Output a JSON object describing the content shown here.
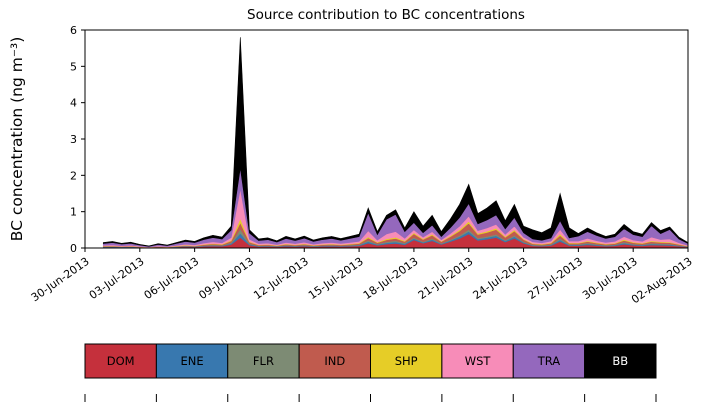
{
  "figure": {
    "background": "#ffffff"
  },
  "chart_data": {
    "type": "area",
    "stacked": true,
    "title": "Source contribution to BC concentrations",
    "xlabel": "",
    "ylabel": "BC concentration (ng m⁻³)",
    "ylim": [
      0,
      6
    ],
    "yticks": [
      0,
      1,
      2,
      3,
      4,
      5,
      6
    ],
    "xlim": [
      0,
      33
    ],
    "x_unit": "days since 30-Jun-2013",
    "grid": false,
    "legend_position": "bottom",
    "xtick_positions": [
      0,
      3,
      6,
      9,
      12,
      15,
      18,
      21,
      24,
      27,
      30,
      33
    ],
    "xtick_labels": [
      "30-Jun-2013",
      "03-Jul-2013",
      "06-Jul-2013",
      "09-Jul-2013",
      "12-Jul-2013",
      "15-Jul-2013",
      "18-Jul-2013",
      "21-Jul-2013",
      "24-Jul-2013",
      "27-Jul-2013",
      "30-Jul-2013",
      "02-Aug-2013"
    ],
    "x": [
      1,
      1.5,
      2,
      2.5,
      3,
      3.5,
      4,
      4.5,
      5,
      5.5,
      6,
      6.5,
      7,
      7.5,
      8,
      8.5,
      9,
      9.5,
      10,
      10.5,
      11,
      11.5,
      12,
      12.5,
      13,
      13.5,
      14,
      14.5,
      15,
      15.5,
      16,
      16.5,
      17,
      17.5,
      18,
      18.5,
      19,
      19.5,
      20,
      20.5,
      21,
      21.5,
      22,
      22.5,
      23,
      23.5,
      24,
      24.5,
      25,
      25.5,
      26,
      26.5,
      27,
      27.5,
      28,
      28.5,
      29,
      29.5,
      30,
      30.5,
      31,
      31.5,
      32,
      32.5,
      33
    ],
    "series": [
      {
        "name": "DOM",
        "color": "#c5303c",
        "values": [
          0.024,
          0.029,
          0.021,
          0.026,
          0.016,
          0.01,
          0.019,
          0.013,
          0.024,
          0.035,
          0.029,
          0.045,
          0.056,
          0.048,
          0.096,
          0.29,
          0.08,
          0.04,
          0.045,
          0.032,
          0.051,
          0.04,
          0.053,
          0.035,
          0.045,
          0.051,
          0.042,
          0.051,
          0.061,
          0.132,
          0.072,
          0.108,
          0.126,
          0.088,
          0.22,
          0.132,
          0.198,
          0.099,
          0.176,
          0.264,
          0.385,
          0.209,
          0.242,
          0.286,
          0.165,
          0.264,
          0.132,
          0.06,
          0.05,
          0.066,
          0.18,
          0.066,
          0.064,
          0.088,
          0.067,
          0.051,
          0.061,
          0.104,
          0.072,
          0.061,
          0.084,
          0.077,
          0.07,
          0.048,
          0.024
        ]
      },
      {
        "name": "ENE",
        "color": "#3878af",
        "values": [
          0.008,
          0.009,
          0.007,
          0.008,
          0.005,
          0.003,
          0.006,
          0.004,
          0.008,
          0.011,
          0.009,
          0.014,
          0.018,
          0.015,
          0.03,
          0.116,
          0.025,
          0.013,
          0.014,
          0.01,
          0.016,
          0.013,
          0.017,
          0.011,
          0.014,
          0.016,
          0.013,
          0.016,
          0.019,
          0.044,
          0.023,
          0.036,
          0.042,
          0.028,
          0.04,
          0.024,
          0.036,
          0.018,
          0.032,
          0.048,
          0.07,
          0.038,
          0.044,
          0.052,
          0.03,
          0.048,
          0.024,
          0.015,
          0.013,
          0.017,
          0.045,
          0.017,
          0.02,
          0.028,
          0.021,
          0.016,
          0.019,
          0.033,
          0.023,
          0.019,
          0.028,
          0.024,
          0.023,
          0.015,
          0.008
        ]
      },
      {
        "name": "FLR",
        "color": "#7d8b74",
        "values": [
          0.006,
          0.007,
          0.005,
          0.006,
          0.004,
          0.002,
          0.005,
          0.003,
          0.006,
          0.009,
          0.007,
          0.011,
          0.014,
          0.012,
          0.024,
          0.116,
          0.02,
          0.01,
          0.011,
          0.008,
          0.013,
          0.01,
          0.013,
          0.009,
          0.011,
          0.013,
          0.01,
          0.013,
          0.015,
          0.033,
          0.018,
          0.027,
          0.032,
          0.022,
          0.03,
          0.018,
          0.027,
          0.014,
          0.024,
          0.036,
          0.053,
          0.029,
          0.033,
          0.039,
          0.023,
          0.036,
          0.018,
          0.015,
          0.013,
          0.017,
          0.045,
          0.017,
          0.016,
          0.022,
          0.017,
          0.013,
          0.015,
          0.026,
          0.018,
          0.015,
          0.021,
          0.019,
          0.017,
          0.012,
          0.006
        ]
      },
      {
        "name": "IND",
        "color": "#c05b4e",
        "values": [
          0.011,
          0.013,
          0.009,
          0.011,
          0.007,
          0.004,
          0.008,
          0.006,
          0.011,
          0.015,
          0.013,
          0.02,
          0.025,
          0.021,
          0.042,
          0.174,
          0.035,
          0.018,
          0.02,
          0.014,
          0.022,
          0.018,
          0.023,
          0.015,
          0.02,
          0.022,
          0.018,
          0.022,
          0.027,
          0.066,
          0.032,
          0.054,
          0.063,
          0.039,
          0.1,
          0.06,
          0.09,
          0.045,
          0.08,
          0.12,
          0.175,
          0.095,
          0.11,
          0.13,
          0.075,
          0.12,
          0.06,
          0.025,
          0.021,
          0.028,
          0.075,
          0.028,
          0.028,
          0.039,
          0.029,
          0.022,
          0.027,
          0.046,
          0.032,
          0.027,
          0.042,
          0.034,
          0.035,
          0.021,
          0.011
        ]
      },
      {
        "name": "SHP",
        "color": "#e6cd27",
        "values": [
          0.006,
          0.007,
          0.005,
          0.006,
          0.004,
          0.002,
          0.005,
          0.003,
          0.006,
          0.009,
          0.007,
          0.011,
          0.014,
          0.012,
          0.024,
          0.116,
          0.02,
          0.01,
          0.011,
          0.008,
          0.013,
          0.01,
          0.013,
          0.009,
          0.011,
          0.013,
          0.01,
          0.013,
          0.015,
          0.033,
          0.018,
          0.027,
          0.032,
          0.022,
          0.03,
          0.018,
          0.027,
          0.014,
          0.024,
          0.036,
          0.053,
          0.029,
          0.033,
          0.039,
          0.023,
          0.036,
          0.018,
          0.015,
          0.013,
          0.017,
          0.045,
          0.017,
          0.016,
          0.022,
          0.017,
          0.013,
          0.015,
          0.026,
          0.018,
          0.015,
          0.021,
          0.019,
          0.017,
          0.012,
          0.006
        ]
      },
      {
        "name": "WST",
        "color": "#f78cb8",
        "values": [
          0.018,
          0.022,
          0.016,
          0.019,
          0.012,
          0.007,
          0.014,
          0.01,
          0.018,
          0.026,
          0.022,
          0.034,
          0.042,
          0.036,
          0.072,
          0.812,
          0.06,
          0.03,
          0.034,
          0.024,
          0.038,
          0.03,
          0.04,
          0.026,
          0.034,
          0.038,
          0.031,
          0.038,
          0.046,
          0.165,
          0.054,
          0.135,
          0.158,
          0.066,
          0.08,
          0.048,
          0.072,
          0.036,
          0.064,
          0.096,
          0.14,
          0.076,
          0.088,
          0.104,
          0.06,
          0.096,
          0.048,
          0.04,
          0.034,
          0.044,
          0.12,
          0.044,
          0.048,
          0.066,
          0.05,
          0.038,
          0.046,
          0.078,
          0.054,
          0.046,
          0.105,
          0.058,
          0.087,
          0.036,
          0.018
        ]
      },
      {
        "name": "TRA",
        "color": "#9468bd",
        "values": [
          0.051,
          0.061,
          0.044,
          0.054,
          0.034,
          0.02,
          0.041,
          0.027,
          0.051,
          0.075,
          0.061,
          0.095,
          0.119,
          0.102,
          0.204,
          0.58,
          0.17,
          0.085,
          0.095,
          0.068,
          0.109,
          0.085,
          0.112,
          0.075,
          0.095,
          0.109,
          0.088,
          0.109,
          0.129,
          0.495,
          0.153,
          0.405,
          0.473,
          0.187,
          0.2,
          0.12,
          0.18,
          0.09,
          0.16,
          0.24,
          0.35,
          0.19,
          0.22,
          0.26,
          0.15,
          0.24,
          0.12,
          0.08,
          0.067,
          0.088,
          0.24,
          0.088,
          0.136,
          0.187,
          0.143,
          0.109,
          0.129,
          0.221,
          0.153,
          0.129,
          0.315,
          0.163,
          0.261,
          0.102,
          0.051
        ]
      },
      {
        "name": "BB",
        "color": "#000000",
        "values": [
          0.027,
          0.032,
          0.023,
          0.029,
          0.018,
          0.011,
          0.022,
          0.014,
          0.027,
          0.04,
          0.032,
          0.05,
          0.063,
          0.054,
          0.108,
          3.596,
          0.09,
          0.045,
          0.05,
          0.036,
          0.058,
          0.045,
          0.059,
          0.04,
          0.05,
          0.058,
          0.047,
          0.058,
          0.068,
          0.132,
          0.081,
          0.108,
          0.126,
          0.099,
          0.3,
          0.18,
          0.27,
          0.135,
          0.24,
          0.36,
          0.525,
          0.285,
          0.33,
          0.39,
          0.225,
          0.36,
          0.18,
          0.25,
          0.21,
          0.275,
          0.75,
          0.275,
          0.072,
          0.099,
          0.076,
          0.058,
          0.068,
          0.117,
          0.081,
          0.068,
          0.084,
          0.086,
          0.07,
          0.054,
          0.027
        ]
      }
    ],
    "legend": {
      "entries": [
        {
          "label": "DOM",
          "color": "#c5303c",
          "text_color": "#000000"
        },
        {
          "label": "ENE",
          "color": "#3878af",
          "text_color": "#000000"
        },
        {
          "label": "FLR",
          "color": "#7d8b74",
          "text_color": "#000000"
        },
        {
          "label": "IND",
          "color": "#c05b4e",
          "text_color": "#000000"
        },
        {
          "label": "SHP",
          "color": "#e6cd27",
          "text_color": "#000000"
        },
        {
          "label": "WST",
          "color": "#f78cb8",
          "text_color": "#000000"
        },
        {
          "label": "TRA",
          "color": "#9468bd",
          "text_color": "#000000"
        },
        {
          "label": "BB",
          "color": "#000000",
          "text_color": "#ffffff"
        }
      ]
    }
  }
}
